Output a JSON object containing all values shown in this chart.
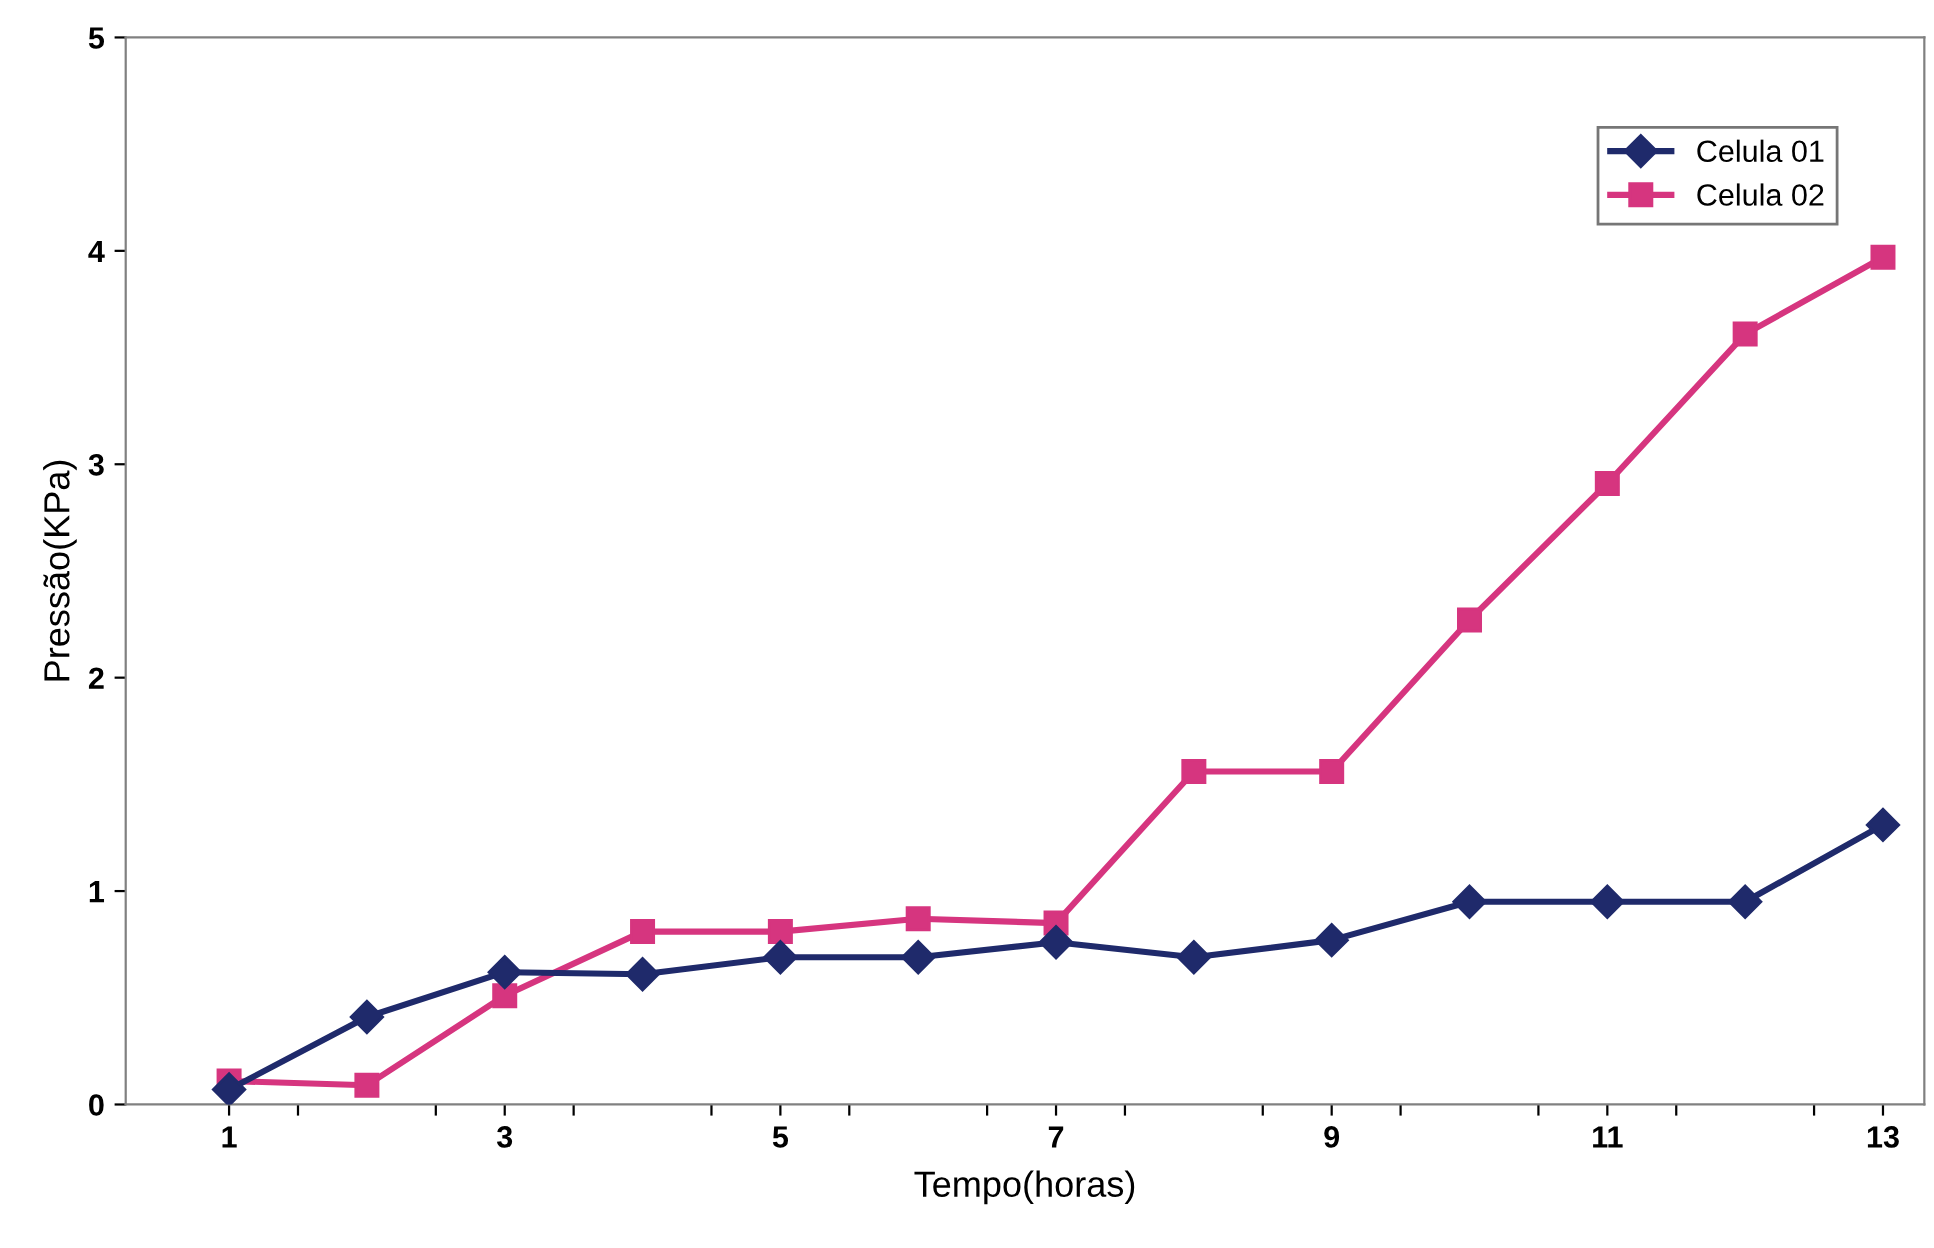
{
  "chart_data": {
    "type": "line",
    "xlabel": "Tempo(horas)",
    "ylabel": "Pressão(KPa)",
    "x": [
      1,
      2,
      3,
      4,
      5,
      6,
      7,
      8,
      9,
      10,
      11,
      12,
      13
    ],
    "series": [
      {
        "name": "Celula 01",
        "color": "#1f2a6b",
        "marker": "diamond",
        "values": [
          0.07,
          0.41,
          0.62,
          0.61,
          0.69,
          0.69,
          0.76,
          0.69,
          0.77,
          0.95,
          0.95,
          0.95,
          1.31
        ]
      },
      {
        "name": "Celula 02",
        "color": "#d6357f",
        "marker": "square",
        "values": [
          0.11,
          0.09,
          0.51,
          0.81,
          0.81,
          0.87,
          0.85,
          1.56,
          1.56,
          2.27,
          2.91,
          3.61,
          3.97
        ]
      }
    ],
    "xlim": [
      0.25,
      13.3
    ],
    "ylim": [
      0,
      5
    ],
    "xticks": [
      1,
      {
        "value": 1.5,
        "label": null
      },
      {
        "value": 2.5,
        "label": null
      },
      3,
      {
        "value": 3.5,
        "label": null
      },
      {
        "value": 4.5,
        "label": null
      },
      5,
      {
        "value": 5.5,
        "label": null
      },
      {
        "value": 6.5,
        "label": null
      },
      7,
      {
        "value": 7.5,
        "label": null
      },
      {
        "value": 8.5,
        "label": null
      },
      9,
      {
        "value": 9.5,
        "label": null
      },
      {
        "value": 10.5,
        "label": null
      },
      11,
      {
        "value": 11.5,
        "label": null
      },
      {
        "value": 12.5,
        "label": null
      },
      13
    ],
    "yticks": [
      0,
      1,
      2,
      3,
      4,
      5
    ],
    "grid": false,
    "legend": "top right",
    "line_style": "solid"
  }
}
